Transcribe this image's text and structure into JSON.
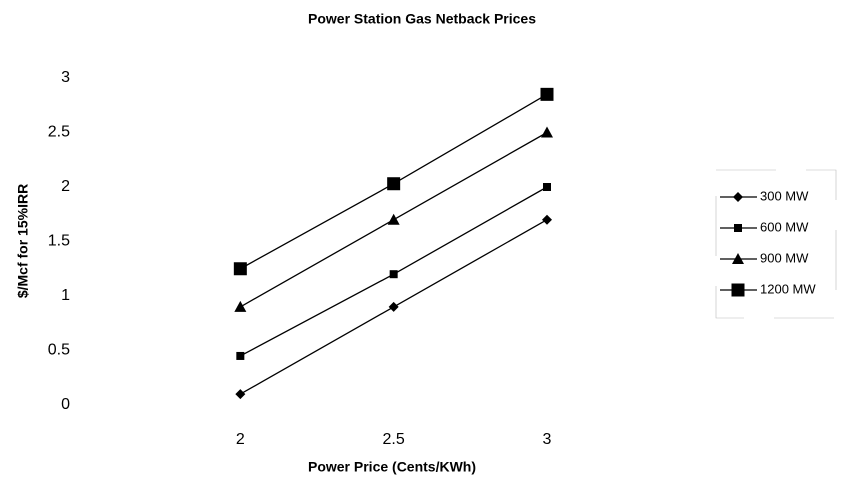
{
  "chart_data": {
    "type": "line",
    "title": "Power Station Gas Netback Prices",
    "xlabel": "Power Price (Cents/KWh)",
    "ylabel": "$/Mcf for 15%IRR",
    "x": [
      2,
      2.5,
      3
    ],
    "xlim": [
      1.5,
      3.45
    ],
    "xticks": [
      2,
      2.5,
      3
    ],
    "ylim": [
      0,
      3
    ],
    "yticks": [
      0,
      0.5,
      1,
      1.5,
      2,
      2.5,
      3
    ],
    "legend": "right",
    "series": [
      {
        "name": "300 MW",
        "color": "#000000",
        "marker": "diamond",
        "values": [
          0.1,
          0.9,
          1.7
        ]
      },
      {
        "name": "600 MW",
        "color": "#000000",
        "marker": "square",
        "values": [
          0.45,
          1.2,
          2.0
        ]
      },
      {
        "name": "900 MW",
        "color": "#000000",
        "marker": "triangle",
        "values": [
          0.9,
          1.7,
          2.5
        ]
      },
      {
        "name": "1200 MW",
        "color": "#000000",
        "marker": "big-square",
        "values": [
          1.25,
          2.03,
          2.85
        ]
      }
    ]
  }
}
